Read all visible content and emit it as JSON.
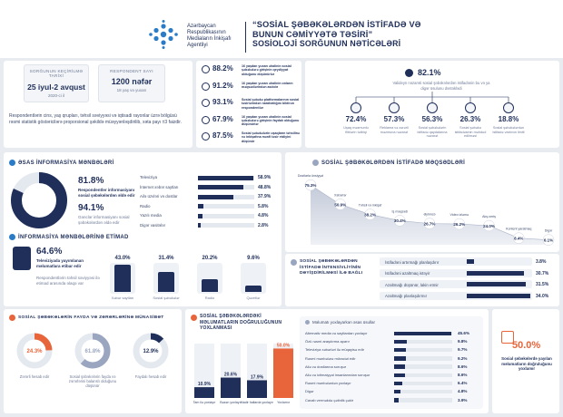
{
  "header": {
    "org_name": "Azərbaycan Respublikasının Mediaların İnkişafı Agentliyi",
    "title_line1": "“SOSİAL ŞƏBƏKƏLƏRDƏN İSTİFADƏ VƏ",
    "title_line2": "BUNUN CƏMİYYƏTƏ TƏSİRİ”",
    "title_line3": "SOSİOLOJİ SORĞUNUN NƏTİCƏLƏRİ"
  },
  "survey": {
    "date_caption": "SORĞUNUN KEÇİRİLMƏ TARİXİ",
    "date_value": "25 iyul-2 avqust",
    "date_year": "2020-ci il",
    "resp_caption": "RESPONDENT SAYI",
    "resp_value": "1200 nəfər",
    "resp_sub": "18 yaş və yuxarı",
    "note": "Respondentlərin cins, yaş qrupları, təhsil səviyyəsi və iqtisadi rayonlar üzrə bölgüsü rəsmi statistik göstəricilərə proporsional şəkildə müəyyənləşdirilib, xəta payı ±3 faizdir."
  },
  "top_stats": [
    {
      "value": "88.2%",
      "text": "16 yaşdan yuxarı əhalinin sosial şəbəkələrə girişinin qeydiyyat olduğunu düşünürlər"
    },
    {
      "value": "91.2%",
      "text": "16 yaşdan yuxarı əhalinin onların məqsədlərindən asılıdır"
    },
    {
      "value": "93.1%",
      "text": "Sosial şəbəkə platformalarının sosial təsirlərindən narahatlığını bildirən respondentlər"
    },
    {
      "value": "67.9%",
      "text": "16 yaşdan yuxarı əhalinin sosial şəbəkələrə girişinin faydalı olduğunu düşünürlər"
    },
    {
      "value": "87.5%",
      "text": "Sosial şəbəkələrin uşaqların təhsilinə və inkişafına mənfi təsir etdiyini düşünür"
    }
  ],
  "right_stats": {
    "main_value": "82.1%",
    "main_text": "Valideyn nəzarəti sosial şəbəkələrdən istifadənin bu və ya digər üsulunu dəstəklədi",
    "items": [
      {
        "value": "72.4%",
        "text": "Uşaq məzmunlu filtrlərin tətbiqi"
      },
      {
        "value": "57.3%",
        "text": "Reklama və zərərli məzmuna nəzarət"
      },
      {
        "value": "56.3%",
        "text": "Sosial şəbəkələrin istifadə qaydalarına nəzarət"
      },
      {
        "value": "26.3%",
        "text": "Sosial şəbəkə istifadəsinin məhdud edilməsi"
      },
      {
        "value": "18.8%",
        "text": "Sosial şəbəkələrdən istifadə vaxtının limiti"
      }
    ]
  },
  "sources": {
    "title": "ƏSAS İNFORMASİYA MƏNBƏLƏRİ",
    "v1": "81.8%",
    "t1": "Respondentlər informasiyanı sosial şəbəkələrdən əldə edir",
    "v2": "94.1%",
    "t2": "Gənclər informasiyanı sosial şəbəkələrdən əldə edir",
    "bars": [
      {
        "label": "Televiziya",
        "value": 58.9,
        "display": "58.9%"
      },
      {
        "label": "İnternet xəbər saytları",
        "value": 48.8,
        "display": "48.8%"
      },
      {
        "label": "Ailə üzvləri və dostlar",
        "value": 37.9,
        "display": "37.9%"
      },
      {
        "label": "Radio",
        "value": 5.8,
        "display": "5.8%"
      },
      {
        "label": "Yazılı media",
        "value": 4.8,
        "display": "4.8%"
      },
      {
        "label": "Digər vasitələr",
        "value": 2.8,
        "display": "2.8%"
      }
    ]
  },
  "trust": {
    "title": "İNFORMASİYA MƏNBƏLƏRİNƏ ETİMAD",
    "main_value": "64.6%",
    "main_text": "Televiziyada yayımlanan məlumatlara etibar edir",
    "sub_text": "Respondentlərin təhsil səviyyəsi ilə etimad arasında əlaqə var",
    "items": [
      {
        "value": "43.0%",
        "label": "Xəbər saytları",
        "fill": 0.43
      },
      {
        "value": "31.4%",
        "label": "Sosial şəbəkələr",
        "fill": 0.314
      },
      {
        "value": "20.2%",
        "label": "Radio",
        "fill": 0.202
      },
      {
        "value": "9.6%",
        "label": "Qəzetlər",
        "fill": 0.096
      }
    ]
  },
  "area_chart": {
    "title": "SOSİAL ŞƏBƏKƏLƏRDƏN İSTİFADƏ MƏQSƏDLƏRİ"
  },
  "chart_data": [
    {
      "type": "area",
      "title": "SOSİAL ŞƏBƏKƏLƏRDƏN İSTİFADƏ MƏQSƏDLƏRİ",
      "categories": [
        "Dostlarla ünsiyyət",
        "Xəbərlər",
        "Təhsil və inkişaf",
        "İş məqsədi",
        "Əyləncə",
        "Video izləmə",
        "Alış-veriş",
        "Kontent yaratmaq",
        "Digər"
      ],
      "values": [
        75.3,
        50.9,
        38.2,
        30.4,
        26.7,
        26.2,
        24.0,
        8.4,
        6.1
      ],
      "display": [
        "75.3%",
        "50.9%",
        "38.2%",
        "30.4%",
        "26.7%",
        "26.2%",
        "24.0%",
        "8.4%",
        "6.1%"
      ],
      "ylim": [
        0,
        80
      ]
    },
    {
      "type": "bar",
      "title": "SOSİAL ŞƏBƏKƏLƏRDƏN İSTİFADƏ İNTENSİVLİYİNİN DƏYİŞDİRİLMƏSİ İLƏ BAĞLI",
      "categories": [
        "İstifadəni artırmağı planlaşdırır",
        "İstifadəni azaltmaq istəyir",
        "Azaltmağı düşünür, lakin etmir",
        "Azaltmağı planlaşdırmır"
      ],
      "values": [
        3.8,
        30.7,
        31.5,
        34.0
      ],
      "display": [
        "3.8%",
        "30.7%",
        "31.5%",
        "34.0%"
      ]
    },
    {
      "type": "pie",
      "title": "SOSİAL ŞƏBƏKƏLƏRİN FAYDA VƏ ZƏRƏRLƏRİNƏ MÜNASİBƏT",
      "items": [
        {
          "label": "Zərərli hesab edir",
          "value": 24.3,
          "display": "24.3%",
          "color": "#e8643a"
        },
        {
          "label": "Sosial şəbəkələrin fayda və zərərlərini balanslı olduğunu düşünür",
          "value": 61.8,
          "display": "61.8%",
          "color": "#9aa6c0"
        },
        {
          "label": "Faydalı hesab edir",
          "value": 12.9,
          "display": "12.9%",
          "color": "#1f2f5a"
        }
      ]
    },
    {
      "type": "bar",
      "title": "SOSİAL ŞƏBƏKƏLƏRDƏKİ MƏLUMATLARIN DOĞRULUĞUNUN YOXLANMASI",
      "categories": [
        "Tam ilə yoxlayır",
        "Bəzən yoxlayır",
        "Nadir hallarda yoxlayır",
        "Yoxlamır"
      ],
      "values": [
        10.9,
        20.6,
        17.9,
        50.0
      ],
      "display": [
        "10.9%",
        "20.6%",
        "17.9%",
        "50.0%"
      ],
      "ylim": [
        0,
        55
      ]
    },
    {
      "type": "bar",
      "title": "Məlumatı yoxlayarkən əsas üsullar",
      "categories": [
        "Alternativ media və saytlardan yoxlayır",
        "Özü rəsmi araşdırma aparır",
        "Televiziya xəbərləri ilə müqayisə edir",
        "Rəsmi mənbələrə müraciət edir",
        "Ailə və dostlarına soruşur",
        "Ailə və ictimaiyyət insanlarından soruşur",
        "Rəsmi mənbələrdən yoxlayır",
        "Digər",
        "Cavab verməkdə çətinlik çəkir"
      ],
      "values": [
        45.6,
        9.8,
        9.7,
        9.2,
        8.6,
        8.6,
        6.4,
        4.8,
        3.9
      ],
      "display": [
        "45.6%",
        "9.8%",
        "9.7%",
        "9.2%",
        "8.6%",
        "8.6%",
        "6.4%",
        "4.8%",
        "3.9%"
      ]
    }
  ],
  "intensity": {
    "title": "SOSİAL ŞƏBƏKƏLƏRDƏN İSTİFADƏ İNTENSİVLİYİNİN DƏYİŞDİRİLMƏSİ İLƏ BAĞLI"
  },
  "benefit": {
    "title": "SOSİAL ŞƏBƏKƏLƏRİN FAYDA VƏ ZƏRƏRLƏRİNƏ MÜNASİBƏT"
  },
  "verify": {
    "title": "SOSİAL ŞƏBƏKƏLƏRDƏKİ MƏLUMATLARIN DOĞRULUĞUNUN YOXLANMASI",
    "methods_title": "Məlumatı yoxlayarkən əsas üsullar"
  },
  "final": {
    "value": "50.0%",
    "text": "Sosial şəbəkələrdə yayılan məlumatların doğruluğunu yoxlamır"
  },
  "colors": {
    "navy": "#1f2f5a",
    "orange": "#e8643a",
    "grey": "#9aa6c0",
    "light": "#e4e8ef"
  }
}
